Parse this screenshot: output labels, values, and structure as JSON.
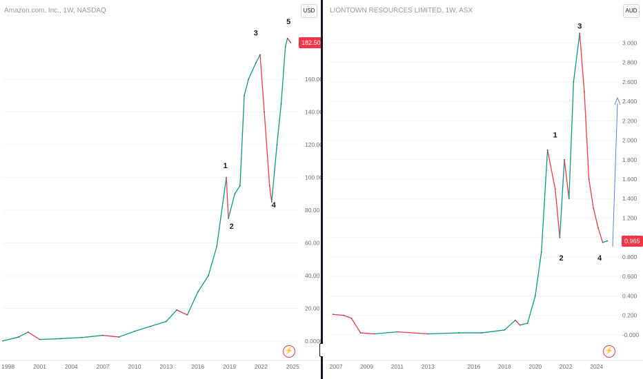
{
  "charts": [
    {
      "title": "Amazon.com, Inc., 1W, NASDAQ",
      "currency": "USD",
      "last_price": "182.50",
      "y_ticks": [
        "0.0000",
        "20.00",
        "40.00",
        "60.00",
        "80.00",
        "100.00",
        "120.00",
        "140.00",
        "160.00"
      ],
      "x_ticks": [
        "1998",
        "2001",
        "2004",
        "2007",
        "2010",
        "2013",
        "2016",
        "2019",
        "2022",
        "2025"
      ],
      "wave_labels": [
        "1",
        "2",
        "3",
        "4",
        "5"
      ]
    },
    {
      "title": "LIONTOWN RESOURCES LIMITED, 1W, ASX",
      "currency": "AUD",
      "last_price": "0.965",
      "y_ticks": [
        "-0.000",
        "0.200",
        "0.400",
        "0.600",
        "0.800",
        "1.000",
        "1.200",
        "1.400",
        "1.600",
        "1.800",
        "2.000",
        "2.200",
        "2.400",
        "2.600",
        "2.800",
        "3.000"
      ],
      "x_ticks": [
        "2007",
        "2009",
        "2011",
        "2013",
        "2016",
        "2018",
        "2020",
        "2022",
        "2024"
      ],
      "wave_labels": [
        "1",
        "2",
        "3",
        "4"
      ]
    }
  ],
  "chart_data": [
    {
      "type": "line",
      "title": "Amazon.com, Inc., 1W, NASDAQ",
      "ylim": [
        0,
        200
      ],
      "xlim": [
        1997.5,
        2025.5
      ],
      "x": [
        1997.5,
        1999.0,
        1999.9,
        2001.0,
        2003.0,
        2005.0,
        2007.0,
        2008.5,
        2010.0,
        2011.5,
        2013.0,
        2014.0,
        2015.0,
        2016.0,
        2017.0,
        2017.8,
        2018.7,
        2018.9,
        2019.5,
        2020.0,
        2020.4,
        2020.8,
        2021.5,
        2021.9,
        2022.3,
        2022.8,
        2023.0,
        2023.5,
        2023.9,
        2024.3,
        2024.5,
        2024.8
      ],
      "values": [
        0.1,
        2.5,
        5.5,
        1.0,
        1.5,
        2.2,
        3.5,
        2.5,
        6.0,
        9.0,
        12.0,
        19.0,
        16.0,
        30.0,
        40.0,
        58.0,
        100.0,
        75.0,
        90.0,
        95.0,
        150.0,
        160.0,
        170.0,
        175.0,
        140.0,
        95.0,
        85.0,
        120.0,
        145.0,
        180.0,
        185.0,
        182.5
      ],
      "last_price": 182.5
    },
    {
      "type": "line",
      "title": "LIONTOWN RESOURCES LIMITED, 1W, ASX",
      "ylim": [
        -0.1,
        3.3
      ],
      "xlim": [
        2006.5,
        2025.5
      ],
      "x": [
        2006.8,
        2007.5,
        2008.0,
        2008.6,
        2009.5,
        2011.0,
        2013.0,
        2015.0,
        2016.5,
        2018.0,
        2018.7,
        2019.0,
        2019.5,
        2020.0,
        2020.4,
        2020.8,
        2021.3,
        2021.6,
        2021.9,
        2022.2,
        2022.5,
        2022.9,
        2023.2,
        2023.5,
        2023.8,
        2024.1,
        2024.4,
        2024.7
      ],
      "values": [
        0.21,
        0.2,
        0.17,
        0.02,
        0.01,
        0.03,
        0.01,
        0.02,
        0.02,
        0.05,
        0.15,
        0.1,
        0.12,
        0.4,
        0.85,
        1.9,
        1.5,
        1.0,
        1.8,
        1.4,
        2.6,
        3.1,
        2.5,
        1.6,
        1.3,
        1.1,
        0.95,
        0.965
      ],
      "last_price": 0.965
    }
  ]
}
